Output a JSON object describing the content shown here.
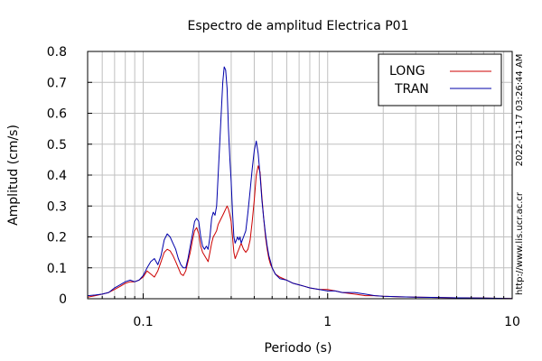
{
  "chart_data": {
    "type": "line",
    "title": "Espectro de amplitud Electrica P01",
    "xlabel": "Periodo (s)",
    "ylabel": "Amplitud (cm/s)",
    "xscale": "log",
    "xlim": [
      0.05,
      10
    ],
    "ylim": [
      0,
      0.8
    ],
    "grid": true,
    "legend_position": "top-right",
    "x_tick_labels": [
      "0.1",
      "1",
      "10"
    ],
    "x_tick_values": [
      0.1,
      1,
      10
    ],
    "y_tick_labels": [
      "0",
      "0.1",
      "0.2",
      "0.3",
      "0.4",
      "0.5",
      "0.6",
      "0.7",
      "0.8"
    ],
    "y_tick_values": [
      0,
      0.1,
      0.2,
      0.3,
      0.4,
      0.5,
      0.6,
      0.7,
      0.8
    ],
    "series": [
      {
        "name": "LONG",
        "color": "#cc0000",
        "x": [
          0.05,
          0.055,
          0.06,
          0.065,
          0.07,
          0.075,
          0.08,
          0.085,
          0.09,
          0.095,
          0.1,
          0.105,
          0.11,
          0.115,
          0.12,
          0.125,
          0.13,
          0.135,
          0.14,
          0.145,
          0.15,
          0.155,
          0.16,
          0.165,
          0.17,
          0.175,
          0.18,
          0.185,
          0.19,
          0.195,
          0.2,
          0.205,
          0.21,
          0.215,
          0.22,
          0.225,
          0.23,
          0.235,
          0.24,
          0.245,
          0.25,
          0.255,
          0.26,
          0.265,
          0.27,
          0.275,
          0.28,
          0.285,
          0.29,
          0.295,
          0.3,
          0.305,
          0.31,
          0.315,
          0.32,
          0.325,
          0.33,
          0.335,
          0.34,
          0.345,
          0.35,
          0.36,
          0.37,
          0.38,
          0.39,
          0.4,
          0.41,
          0.42,
          0.43,
          0.44,
          0.45,
          0.46,
          0.47,
          0.48,
          0.49,
          0.5,
          0.52,
          0.55,
          0.6,
          0.65,
          0.7,
          0.75,
          0.8,
          0.9,
          1.0,
          1.1,
          1.2,
          1.4,
          1.6,
          1.8,
          2.0,
          2.5,
          3.0,
          4.0,
          5.0,
          7.0,
          10.0
        ],
        "y": [
          0.005,
          0.01,
          0.015,
          0.02,
          0.03,
          0.04,
          0.05,
          0.055,
          0.055,
          0.06,
          0.07,
          0.09,
          0.08,
          0.07,
          0.09,
          0.12,
          0.15,
          0.16,
          0.155,
          0.14,
          0.12,
          0.1,
          0.08,
          0.075,
          0.09,
          0.12,
          0.15,
          0.19,
          0.22,
          0.23,
          0.21,
          0.17,
          0.15,
          0.14,
          0.13,
          0.12,
          0.15,
          0.18,
          0.2,
          0.21,
          0.22,
          0.24,
          0.25,
          0.26,
          0.27,
          0.28,
          0.29,
          0.3,
          0.29,
          0.27,
          0.25,
          0.2,
          0.15,
          0.13,
          0.14,
          0.15,
          0.16,
          0.17,
          0.18,
          0.17,
          0.16,
          0.15,
          0.16,
          0.19,
          0.25,
          0.32,
          0.4,
          0.43,
          0.41,
          0.33,
          0.26,
          0.2,
          0.16,
          0.13,
          0.11,
          0.1,
          0.08,
          0.07,
          0.06,
          0.05,
          0.045,
          0.04,
          0.035,
          0.03,
          0.03,
          0.025,
          0.02,
          0.015,
          0.01,
          0.01,
          0.008,
          0.006,
          0.005,
          0.004,
          0.003,
          0.002,
          0.001
        ]
      },
      {
        "name": "TRAN",
        "color": "#0000aa",
        "x": [
          0.05,
          0.055,
          0.06,
          0.065,
          0.07,
          0.075,
          0.08,
          0.085,
          0.09,
          0.095,
          0.1,
          0.105,
          0.11,
          0.115,
          0.12,
          0.125,
          0.13,
          0.135,
          0.14,
          0.145,
          0.15,
          0.155,
          0.16,
          0.165,
          0.17,
          0.175,
          0.18,
          0.185,
          0.19,
          0.195,
          0.2,
          0.205,
          0.21,
          0.215,
          0.22,
          0.225,
          0.23,
          0.235,
          0.24,
          0.245,
          0.25,
          0.255,
          0.26,
          0.265,
          0.27,
          0.275,
          0.28,
          0.285,
          0.29,
          0.295,
          0.3,
          0.305,
          0.31,
          0.315,
          0.32,
          0.325,
          0.33,
          0.335,
          0.34,
          0.345,
          0.35,
          0.36,
          0.37,
          0.38,
          0.39,
          0.4,
          0.41,
          0.42,
          0.43,
          0.44,
          0.45,
          0.46,
          0.47,
          0.48,
          0.49,
          0.5,
          0.52,
          0.55,
          0.6,
          0.65,
          0.7,
          0.75,
          0.8,
          0.9,
          1.0,
          1.1,
          1.2,
          1.4,
          1.6,
          1.8,
          2.0,
          2.5,
          3.0,
          4.0,
          5.0,
          7.0,
          10.0
        ],
        "y": [
          0.01,
          0.012,
          0.015,
          0.02,
          0.035,
          0.045,
          0.055,
          0.06,
          0.055,
          0.06,
          0.075,
          0.1,
          0.12,
          0.13,
          0.11,
          0.14,
          0.19,
          0.21,
          0.2,
          0.18,
          0.16,
          0.13,
          0.11,
          0.1,
          0.1,
          0.13,
          0.17,
          0.21,
          0.25,
          0.26,
          0.25,
          0.2,
          0.17,
          0.16,
          0.17,
          0.16,
          0.2,
          0.26,
          0.28,
          0.27,
          0.3,
          0.4,
          0.5,
          0.6,
          0.7,
          0.75,
          0.74,
          0.68,
          0.55,
          0.45,
          0.38,
          0.28,
          0.2,
          0.18,
          0.19,
          0.2,
          0.19,
          0.2,
          0.18,
          0.19,
          0.2,
          0.22,
          0.28,
          0.35,
          0.42,
          0.48,
          0.51,
          0.47,
          0.4,
          0.32,
          0.26,
          0.21,
          0.17,
          0.14,
          0.12,
          0.1,
          0.08,
          0.065,
          0.06,
          0.05,
          0.045,
          0.04,
          0.035,
          0.03,
          0.025,
          0.025,
          0.02,
          0.02,
          0.015,
          0.01,
          0.008,
          0.006,
          0.005,
          0.004,
          0.003,
          0.002,
          0.001
        ]
      }
    ],
    "annotations": [
      "2022-11-17 03:26:44 AM",
      "http://www.lis.ucr.ac.cr"
    ]
  }
}
